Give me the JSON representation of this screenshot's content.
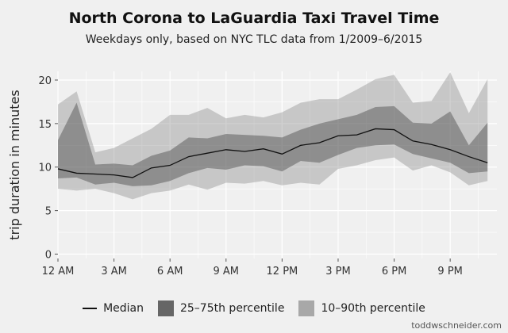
{
  "title": "North Corona to LaGuardia Taxi Travel Time",
  "subtitle": "Weekdays only, based on NYC TLC data from 1/2009–6/2015",
  "credit": "toddwschneider.com",
  "colors": {
    "background": "#f0f0f0",
    "band_10_90": "#bbbbbb",
    "band_25_75": "#888888",
    "median": "#111111",
    "grid": "#ffffff"
  },
  "legend": {
    "position": "bottom",
    "items": [
      {
        "label": "Median",
        "color": "#111111",
        "kind": "line"
      },
      {
        "label": "25–75th percentile",
        "color": "#666666",
        "kind": "box"
      },
      {
        "label": "10–90th percentile",
        "color": "#a8a8a8",
        "kind": "box"
      }
    ]
  },
  "chart_data": {
    "type": "area",
    "title": "North Corona to LaGuardia Taxi Travel Time",
    "xlabel": "",
    "ylabel": "trip duration in minutes",
    "xlim": [
      0,
      23.5
    ],
    "ylim": [
      -0.5,
      21
    ],
    "grid": true,
    "legend_position": "bottom",
    "x_ticks": [
      {
        "value": 0,
        "label": "12 AM"
      },
      {
        "value": 3,
        "label": "3 AM"
      },
      {
        "value": 6,
        "label": "6 AM"
      },
      {
        "value": 9,
        "label": "9 AM"
      },
      {
        "value": 12,
        "label": "12 PM"
      },
      {
        "value": 15,
        "label": "3 PM"
      },
      {
        "value": 18,
        "label": "6 PM"
      },
      {
        "value": 21,
        "label": "9 PM"
      }
    ],
    "y_ticks": [
      0,
      5,
      10,
      15,
      20
    ],
    "x": [
      0,
      1,
      2,
      3,
      4,
      5,
      6,
      7,
      8,
      9,
      10,
      11,
      12,
      13,
      14,
      15,
      16,
      17,
      18,
      19,
      20,
      21,
      22,
      23
    ],
    "series": [
      {
        "name": "Median",
        "values": [
          9.8,
          9.3,
          9.2,
          9.1,
          8.8,
          9.9,
          10.2,
          11.2,
          11.6,
          12.0,
          11.8,
          12.1,
          11.5,
          12.5,
          12.8,
          13.6,
          13.7,
          14.4,
          14.3,
          13.0,
          12.6,
          12.0,
          11.2,
          10.5
        ]
      },
      {
        "name": "25–75th percentile",
        "lower": [
          8.7,
          8.8,
          8.0,
          8.2,
          7.8,
          7.9,
          8.4,
          9.3,
          9.9,
          9.7,
          10.2,
          10.1,
          9.5,
          10.7,
          10.5,
          11.4,
          12.2,
          12.5,
          12.6,
          11.5,
          11.0,
          10.5,
          9.3,
          9.5
        ],
        "upper": [
          13.1,
          17.4,
          10.3,
          10.4,
          10.2,
          11.3,
          11.9,
          13.4,
          13.3,
          13.8,
          13.7,
          13.6,
          13.4,
          14.3,
          15.0,
          15.5,
          16.0,
          16.9,
          17.0,
          15.1,
          15.0,
          16.4,
          12.5,
          15.1
        ]
      },
      {
        "name": "10–90th percentile",
        "lower": [
          7.5,
          7.3,
          7.5,
          7.0,
          6.3,
          7.0,
          7.3,
          8.0,
          7.4,
          8.2,
          8.1,
          8.4,
          7.9,
          8.2,
          8.0,
          9.8,
          10.2,
          10.8,
          11.1,
          9.6,
          10.2,
          9.4,
          7.9,
          8.4
        ],
        "upper": [
          17.2,
          18.7,
          11.7,
          12.2,
          13.3,
          14.4,
          16.0,
          16.0,
          16.8,
          15.6,
          16.0,
          15.7,
          16.3,
          17.4,
          17.8,
          17.8,
          18.9,
          20.1,
          20.6,
          17.4,
          17.6,
          20.9,
          16.2,
          20.1
        ]
      }
    ]
  }
}
